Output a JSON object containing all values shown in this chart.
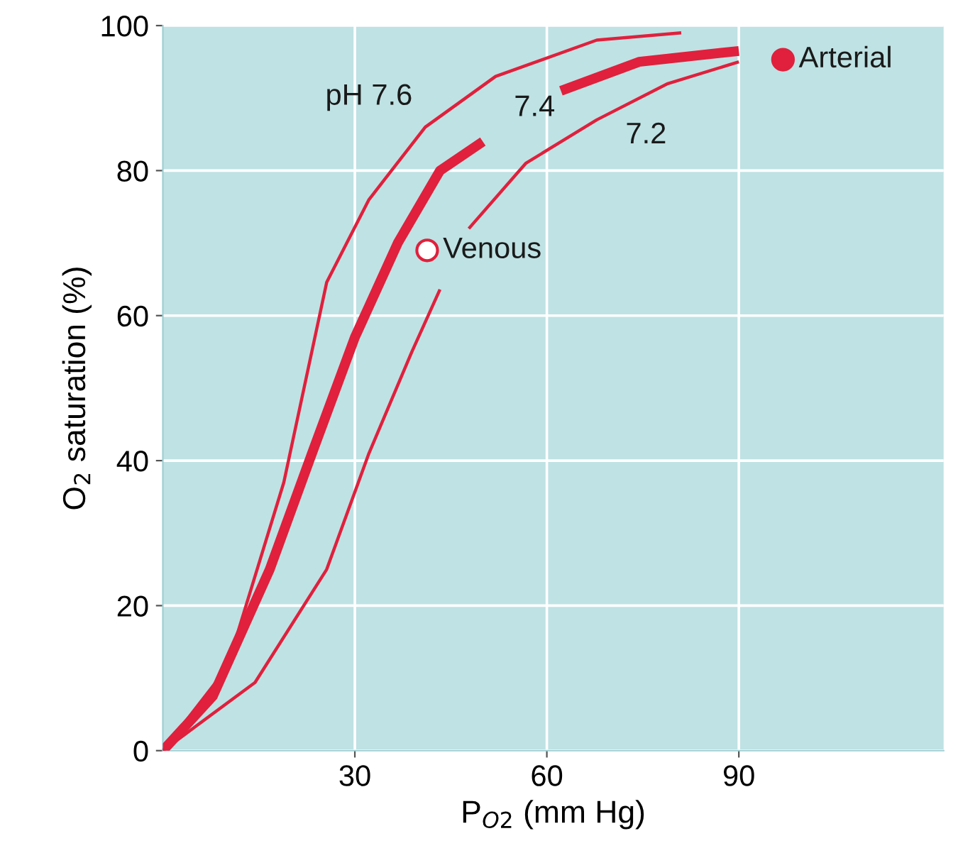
{
  "chart_data": {
    "type": "line",
    "xlabel": "P$_{O2}$ (mm Hg)",
    "ylabel": "O$_{2}$ saturation (%)",
    "xlim": [
      0,
      122
    ],
    "xticks": [
      30,
      60,
      90
    ],
    "ylim": [
      0,
      100
    ],
    "yticks": [
      0,
      20,
      40,
      60,
      80,
      100
    ],
    "grid": true,
    "marker": "none",
    "line_style": "solid",
    "series": [
      {
        "name": "pH 7.6",
        "color": "#e0203c",
        "x": [
          0,
          10,
          18.9,
          25.6,
          32.2,
          41,
          52,
          67.8,
          81
        ],
        "values": [
          0,
          11.4,
          37,
          64.6,
          76,
          86,
          93,
          98,
          99
        ]
      },
      {
        "name": "7.4",
        "color": "#e0203c",
        "x": [
          0,
          7.8,
          16.7,
          23.3,
          30,
          36.7,
          43.3,
          50,
          55,
          62.2,
          74.4,
          90
        ],
        "values": [
          0,
          7.5,
          25,
          41,
          57,
          70,
          80,
          84,
          null,
          91,
          95,
          96.5
        ]
      },
      {
        "name": "7.2",
        "color": "#e0203c",
        "x": [
          0,
          14.4,
          25.6,
          32.2,
          38.9,
          43.3,
          45,
          47.8,
          56.7,
          67.8,
          78.9,
          90
        ],
        "values": [
          0,
          9.4,
          25,
          41,
          55,
          63.6,
          null,
          72,
          81,
          87,
          92,
          95
        ]
      },
      {
        "name": "Venous",
        "type": "scatter",
        "marker": "circle",
        "color": "#e0203c",
        "x": [
          41.3
        ],
        "values": [
          69
        ]
      },
      {
        "name": "Arterial",
        "type": "scatter",
        "marker": "circle",
        "color": "#e0203c",
        "x": [
          96.9
        ],
        "values": [
          95.3
        ]
      }
    ]
  }
}
